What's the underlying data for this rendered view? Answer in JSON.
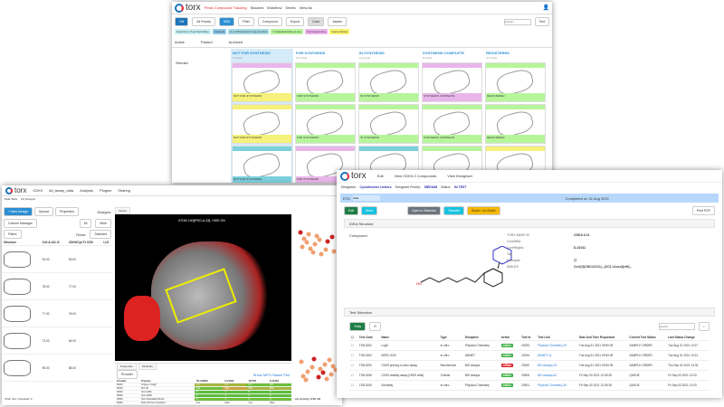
{
  "kanban": {
    "title": "Pests Compound Tracking",
    "nav": [
      "Stacked",
      "Workflow",
      "Series",
      "View As"
    ],
    "toolbar": [
      "ON",
      "All Priority",
      "SBS",
      "Filter",
      "Compound",
      "Export",
      "Color",
      "Assets"
    ],
    "search_placeholder": "Search...",
    "text_label": "Text",
    "series_tags": [
      {
        "label": "Pyrazolo [1,5-a] Pyrimidine",
        "color": "#c7f0f3"
      },
      {
        "label": "Indazole",
        "color": "#8fc8e8"
      },
      {
        "label": "[1,2,4]Triazolo[1,5-a]pyrimidine",
        "color": "#a6dbe6"
      },
      {
        "label": "7-Azaquinazoline-2-one",
        "color": "#b7f59a"
      },
      {
        "label": "Pyrroloquinoline",
        "color": "#f0b3f0"
      },
      {
        "label": "Gems-Series",
        "color": "#f8f36c"
      }
    ],
    "tabs": [
      "Active",
      "Parked",
      "Archived"
    ],
    "filter_label": "Selected",
    "columns": [
      {
        "title": "NOT FOR SYNTHESIS",
        "sub": "3 Cards",
        "cards": [
          {
            "bar": "#e9b6ea",
            "foot": "NOT FOR SYNTHESIS",
            "fc": "#f5f17a"
          },
          {
            "bar": "#f5f17a",
            "foot": "NOT FOR SYNTHESIS",
            "fc": "#f5f17a"
          },
          {
            "bar": "#7bd0dc",
            "foot": "NOT FOR SYNTHESIS",
            "fc": "#7bd0dc"
          }
        ]
      },
      {
        "title": "FOR SYNTHESIS",
        "sub": "12 Cards",
        "cards": [
          {
            "bar": "#b7f59a",
            "foot": "FOR SYNTHESIS",
            "fc": "#b7f59a"
          },
          {
            "bar": "#b7f59a",
            "foot": "FOR SYNTHESIS",
            "fc": "#b7f59a"
          },
          {
            "bar": "#e9b6ea",
            "foot": "FOR SYNTHESIS",
            "fc": "#e9b6ea"
          }
        ]
      },
      {
        "title": "IN SYNTHESIS",
        "sub": "12 Cards",
        "cards": [
          {
            "bar": "#b7f59a",
            "foot": "IN SYNTHESIS",
            "fc": "#b7f59a"
          },
          {
            "bar": "#b7f59a",
            "foot": "IN SYNTHESIS",
            "fc": "#b7f59a"
          },
          {
            "bar": "#7bd0dc",
            "foot": "IN SYNTHESIS",
            "fc": "#7bd0dc"
          }
        ]
      },
      {
        "title": "SYNTHESIS COMPLETE",
        "sub": "8 Cards",
        "cards": [
          {
            "bar": "#e9b6ea",
            "foot": "SYNTHESIS COMPLETE",
            "fc": "#e9b6ea"
          },
          {
            "bar": "#b7f59a",
            "foot": "SYNTHESIS COMPLETE",
            "fc": "#b7f59a"
          },
          {
            "bar": "#b7f59a",
            "foot": "SYNTHESIS COMPLETE",
            "fc": "#b7f59a"
          }
        ]
      },
      {
        "title": "REGISTERED",
        "sub": "22 Cards",
        "cards": [
          {
            "bar": "#b7f59a",
            "foot": "REGISTERED",
            "fc": "#b7f59a"
          },
          {
            "bar": "#b7f59a",
            "foot": "REGISTERED",
            "fc": "#b7f59a"
          },
          {
            "bar": "#f5f17a",
            "foot": "REGISTERED",
            "fc": "#f5f17a"
          }
        ]
      }
    ]
  },
  "analysis": {
    "menu": [
      "CDK9",
      "All_assay_data",
      "Analysis",
      "Plugins",
      "Sharing"
    ],
    "tabs": [
      "Data Table",
      "My Designs"
    ],
    "new_design": "+ New Design",
    "upload": "Upload",
    "properties": "Properties",
    "column_manager": "Column Manager",
    "designs_label": "Designs:",
    "all": "All",
    "mine": "Mine",
    "rows_label": "Rows:",
    "selected": "Selected",
    "filters": "Filters",
    "columns": [
      "Structure",
      "Cell A-431 IC",
      "CDK9/CycT1 IC50",
      "LLE"
    ],
    "rows": [
      [
        "92.00",
        "93.00"
      ],
      [
        "78.00",
        "77.00"
      ],
      [
        "77.00",
        "78.00"
      ],
      [
        "73.00",
        "64.00"
      ],
      [
        "90.00",
        "88.00"
      ]
    ],
    "total": "Total: 311 | Checked: 0",
    "viewer_tab": "Viewer",
    "viewer_label": "ATOM 1H3[PRO-A-33]: HIDE ON",
    "props": {
      "tabs": [
        "Properties",
        "Similarity"
      ],
      "provider_btn": "Provider",
      "mpo_link": "Show MPO Radar Plot",
      "headers": [
        "Provider",
        "Property",
        "TD-108923",
        "D-21062",
        "167762",
        "D-21063"
      ],
      "rows": [
        {
          "p": "Crippen ClogP",
          "v": [
            "4.3",
            "2.4",
            "3.2",
            "3.8"
          ],
          "c": [
            "#a4b63c",
            "#a4b63c",
            "#6dbf3a",
            "#6dbf3a"
          ]
        },
        {
          "p": "Mol Wt",
          "v": [
            "440",
            "502",
            "453",
            "489"
          ],
          "c": [
            "#6dbf3a",
            "#c8a33d",
            "#a4b63c",
            "#a4b63c"
          ]
        },
        {
          "p": "Num HBA",
          "v": [
            "5",
            "7",
            "5",
            "6"
          ],
          "c": [
            "#5cbd3a",
            "#5cbd3a",
            "#5cbd3a",
            "#5cbd3a"
          ]
        },
        {
          "p": "Num HBD",
          "v": [
            "4",
            "3",
            "3",
            "2"
          ],
          "c": [
            "#5cbd3a",
            "#5cbd3a",
            "#5cbd3a",
            "#5cbd3a"
          ]
        },
        {
          "p": "Num Rotatable Bonds",
          "v": [
            "5",
            "4",
            "6",
            "6"
          ],
          "c": [
            "#6dbf3a",
            "#6dbf3a",
            "#6dbf3a",
            "#6dbf3a"
          ]
        },
        {
          "p": "Rule Of Five Compliant",
          "v": [
            "true",
            "false",
            "true",
            "false"
          ],
          "c": [
            "",
            "",
            "",
            ""
          ]
        },
        {
          "p": "Rule Of Three Compliant",
          "v": [
            "false",
            "false",
            "false",
            "false"
          ],
          "c": [
            "",
            "",
            "",
            ""
          ]
        },
        {
          "p": "TPSA",
          "v": [
            "77.7",
            "126",
            "90.5",
            "114"
          ],
          "c": [
            "#5cbd3a",
            "#c4443d",
            "#a4b63c",
            "#c8833d"
          ]
        }
      ]
    },
    "chart_axis": "LE (Activity) IC50 nM"
  },
  "detail": {
    "nav": [
      "Edit",
      "View CDK9-3 Compounds",
      "View Designset"
    ],
    "designset_label": "Designset:",
    "designset": "Cyclohexene Linkers",
    "priority_label": "Designset Priority:",
    "priority": "MEDIUM",
    "status_label": "Status:",
    "status": "IN TEST",
    "eta_label": "ETA",
    "eta": "date",
    "completed": "Completed on 31 Aug 2021",
    "buttons": {
      "edit": "Edit",
      "more": "More",
      "sketcher": "Open in Sketcher",
      "transfer": "Transfer",
      "share": "Share / un-Share",
      "print": "Print PDF"
    },
    "structure_title": "IDEA Structure",
    "compound_label": "Compound",
    "fields": [
      {
        "k": "TORX MAKE ID",
        "v": "CDK9-3-11"
      },
      {
        "k": "CoreDBId",
        "v": ""
      },
      {
        "k": "CoreRegNo",
        "v": "D-21011"
      },
      {
        "k": "Tag",
        "v": ""
      },
      {
        "k": "Exemplar",
        "v": "☐"
      },
      {
        "k": "SMILES",
        "v": "O=C(O)CNC1CCC(...)CC1 c1ccc2[nH]..."
      }
    ],
    "tests_title": "Test Selection",
    "tests_btn": "Tests",
    "search_placeholder": "search",
    "headers": [
      "Test Code",
      "Name",
      "Type",
      "Discipline",
      "Active",
      "Test Id",
      "Test Link",
      "Date And Time Requested",
      "Current Test Status",
      "Last Status Change"
    ],
    "tests": [
      [
        "TID10252",
        "LogD",
        "In-vitro",
        "Physical Chemistry",
        "online",
        "23293",
        "Physical Chemistry-25",
        "Tue Aug 31 2021 09:50:39",
        "SAMPLE ORDER",
        "Tue Aug 31 2021 13:27"
      ],
      [
        "TID10302",
        "hERG IC50",
        "In-vitro",
        "ADMET",
        "online",
        "23294",
        "ADMET-11",
        "Tue Aug 31 2021 09:50:39",
        "SAMPLE ORDER",
        "Tue Aug 31 2021 13:21"
      ],
      [
        "TID10292",
        "CDK9 primary in-vitro assay",
        "Biochemical",
        "BIO Assays",
        "offline",
        "23292",
        "BIO Assays-23",
        "Tue Aug 31 2021 09:50:39",
        "SAMPLE ORDER",
        "Thu Sep 02 2021 14:30"
      ],
      [
        "TID10296",
        "CDK9 viability assay (H929 cells)",
        "Cellular",
        "BIO Assays",
        "online",
        "23505",
        "BIO Assays-61",
        "Fri Sep 03 2021 12:03:35",
        "QUEUE",
        "Fri Sep 03 2021 12:03"
      ],
      [
        "TID10205",
        "Solubility",
        "In-vitro",
        "Physical Chemistry",
        "online",
        "23501",
        "Physical Chemistry-45",
        "Fri Sep 03 2021 12:03:35",
        "QUEUE",
        "Fri Sep 03 2021 12:03"
      ]
    ],
    "colors": {
      "online": "#3cb043",
      "offline": "#e0202a",
      "edit": "#1e7e46",
      "info": "#17c3e0",
      "share": "#f5b800",
      "banner": "#b8d8fb"
    }
  }
}
